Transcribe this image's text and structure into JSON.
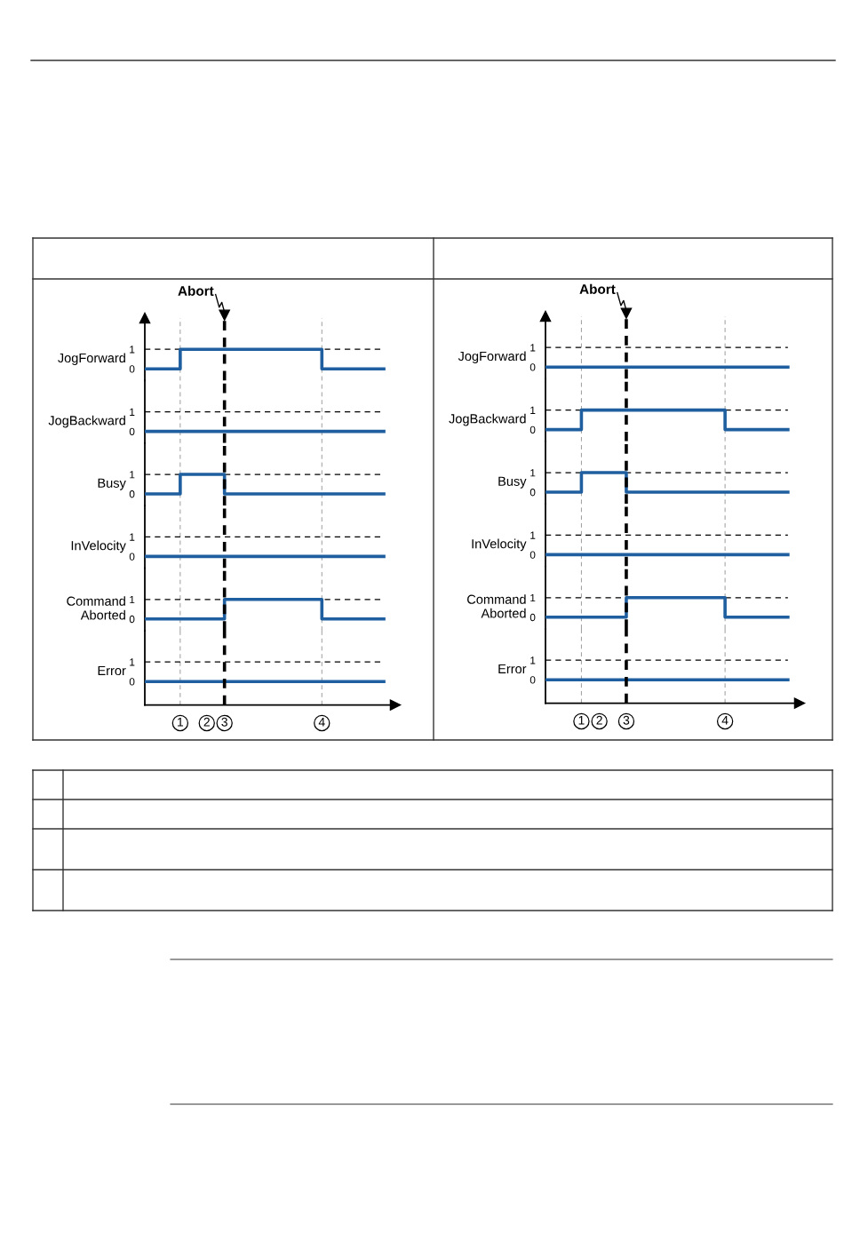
{
  "chart_data": [
    {
      "type": "step",
      "ylabel": "JogForward",
      "ylim": [
        -0.6,
        2.6
      ],
      "yticks": [
        0,
        1
      ],
      "tick_labels": "y",
      "categories": [
        null,
        null,
        null,
        null,
        "1",
        null,
        null,
        "2",
        null,
        "3",
        null,
        null,
        null,
        null,
        null,
        null,
        null,
        null,
        null,
        null,
        "4",
        null,
        null,
        null,
        null,
        null,
        null,
        null
      ],
      "series": [
        {
          "color": "#1f5f9f",
          "values": [
            0,
            0,
            0,
            0,
            1,
            1,
            1,
            1,
            1,
            1,
            1,
            1,
            1,
            1,
            1,
            1,
            1,
            1,
            1,
            1,
            0,
            0,
            0,
            0,
            0,
            0,
            0,
            0
          ]
        }
      ],
      "ref_lines": [
        {
          "axis": "y",
          "value": 1,
          "color": "#000000",
          "line_style": "dashed"
        },
        {
          "axis": "x",
          "value": "1",
          "color": "#999999",
          "line_style": "dashed"
        },
        {
          "axis": "x",
          "value": "4",
          "color": "#999999",
          "line_style": "dashed"
        },
        {
          "axis": "x",
          "value": "3",
          "color": "#000000",
          "line_style": "dashed",
          "label": "Abort"
        }
      ]
    },
    {
      "type": "step",
      "ylabel": "JogBackward",
      "ylim": [
        -0.6,
        2.6
      ],
      "yticks": [
        0,
        1
      ],
      "tick_labels": "y",
      "categories": [
        null,
        null,
        null,
        null,
        "1",
        null,
        null,
        "2",
        null,
        "3",
        null,
        null,
        null,
        null,
        null,
        null,
        null,
        null,
        null,
        null,
        "4",
        null,
        null,
        null,
        null,
        null,
        null,
        null
      ],
      "series": [
        {
          "color": "#1f5f9f",
          "values": [
            0,
            0,
            0,
            0,
            0,
            0,
            0,
            0,
            0,
            0,
            0,
            0,
            0,
            0,
            0,
            0,
            0,
            0,
            0,
            0,
            0,
            0,
            0,
            0,
            0,
            0,
            0,
            0
          ]
        }
      ],
      "ref_lines": [
        {
          "axis": "y",
          "value": 1,
          "color": "#000000",
          "line_style": "dashed"
        },
        {
          "axis": "x",
          "value": "1",
          "color": "#999999",
          "line_style": "dashed"
        },
        {
          "axis": "x",
          "value": "4",
          "color": "#999999",
          "line_style": "dashed"
        },
        {
          "axis": "x",
          "value": "3",
          "color": "#000000",
          "line_style": "dashed"
        }
      ]
    },
    {
      "type": "step",
      "ylabel": "Busy",
      "ylim": [
        -0.6,
        2.6
      ],
      "yticks": [
        0,
        1
      ],
      "tick_labels": "y",
      "categories": [
        null,
        null,
        null,
        null,
        "1",
        null,
        null,
        "2",
        null,
        "3",
        null,
        null,
        null,
        null,
        null,
        null,
        null,
        null,
        null,
        null,
        "4",
        null,
        null,
        null,
        null,
        null,
        null,
        null
      ],
      "series": [
        {
          "color": "#1f5f9f",
          "values": [
            0,
            0,
            0,
            0,
            1,
            1,
            1,
            1,
            1,
            0,
            0,
            0,
            0,
            0,
            0,
            0,
            0,
            0,
            0,
            0,
            0,
            0,
            0,
            0,
            0,
            0,
            0,
            0
          ]
        }
      ],
      "ref_lines": [
        {
          "axis": "y",
          "value": 1,
          "color": "#000000",
          "line_style": "dashed"
        },
        {
          "axis": "x",
          "value": "1",
          "color": "#999999",
          "line_style": "dashed"
        },
        {
          "axis": "x",
          "value": "4",
          "color": "#999999",
          "line_style": "dashed"
        },
        {
          "axis": "x",
          "value": "3",
          "color": "#000000",
          "line_style": "dashed"
        }
      ]
    },
    {
      "type": "step",
      "ylabel": "InVelocity",
      "ylim": [
        -0.6,
        2.6
      ],
      "yticks": [
        0,
        1
      ],
      "tick_labels": "y",
      "categories": [
        null,
        null,
        null,
        null,
        "1",
        null,
        null,
        "2",
        null,
        "3",
        null,
        null,
        null,
        null,
        null,
        null,
        null,
        null,
        null,
        null,
        "4",
        null,
        null,
        null,
        null,
        null,
        null,
        null
      ],
      "series": [
        {
          "color": "#1f5f9f",
          "values": [
            0,
            0,
            0,
            0,
            0,
            0,
            0,
            0,
            0,
            0,
            0,
            0,
            0,
            0,
            0,
            0,
            0,
            0,
            0,
            0,
            0,
            0,
            0,
            0,
            0,
            0,
            0,
            0
          ]
        }
      ],
      "ref_lines": [
        {
          "axis": "y",
          "value": 1,
          "color": "#000000",
          "line_style": "dashed"
        },
        {
          "axis": "x",
          "value": "1",
          "color": "#999999",
          "line_style": "dashed"
        },
        {
          "axis": "x",
          "value": "4",
          "color": "#999999",
          "line_style": "dashed"
        },
        {
          "axis": "x",
          "value": "3",
          "color": "#000000",
          "line_style": "dashed"
        }
      ]
    },
    {
      "type": "step",
      "ylabel": "Command\nAborted",
      "ylim": [
        -0.6,
        2.6
      ],
      "yticks": [
        0,
        1
      ],
      "tick_labels": "y",
      "categories": [
        null,
        null,
        null,
        null,
        "1",
        null,
        null,
        "2",
        null,
        "3",
        null,
        null,
        null,
        null,
        null,
        null,
        null,
        null,
        null,
        null,
        "4",
        null,
        null,
        null,
        null,
        null,
        null,
        null
      ],
      "series": [
        {
          "color": "#1f5f9f",
          "values": [
            0,
            0,
            0,
            0,
            0,
            0,
            0,
            0,
            0,
            1,
            1,
            1,
            1,
            1,
            1,
            1,
            1,
            1,
            1,
            1,
            0,
            0,
            0,
            0,
            0,
            0,
            0,
            0
          ]
        }
      ],
      "ref_lines": [
        {
          "axis": "y",
          "value": 1,
          "color": "#000000",
          "line_style": "dashed"
        },
        {
          "axis": "x",
          "value": "1",
          "color": "#999999",
          "line_style": "dashed"
        },
        {
          "axis": "x",
          "value": "4",
          "color": "#999999",
          "line_style": "dashed"
        },
        {
          "axis": "x",
          "value": "3",
          "color": "#000000",
          "line_style": "dashed"
        }
      ]
    },
    {
      "type": "step",
      "ylabel": "Error",
      "ylim": [
        -1.2,
        2.6
      ],
      "yticks": [
        0,
        1
      ],
      "categories": [
        null,
        null,
        null,
        null,
        "1",
        null,
        null,
        "2",
        null,
        "3",
        null,
        null,
        null,
        null,
        null,
        null,
        null,
        null,
        null,
        null,
        "4",
        null,
        null,
        null,
        null,
        null,
        null,
        null
      ],
      "series": [
        {
          "color": "#1f5f9f",
          "values": [
            0,
            0,
            0,
            0,
            0,
            0,
            0,
            0,
            0,
            0,
            0,
            0,
            0,
            0,
            0,
            0,
            0,
            0,
            0,
            0,
            0,
            0,
            0,
            0,
            0,
            0,
            0,
            0
          ]
        }
      ],
      "ref_lines": [
        {
          "axis": "y",
          "value": 1,
          "color": "#000000",
          "line_style": "dashed"
        },
        {
          "axis": "x",
          "value": "1",
          "color": "#999999",
          "line_style": "dashed"
        },
        {
          "axis": "x",
          "value": "4",
          "color": "#999999",
          "line_style": "dashed"
        },
        {
          "axis": "x",
          "value": "3",
          "color": "#000000",
          "line_style": "dashed"
        }
      ]
    },
    {
      "type": "step",
      "ylabel": "JogForward",
      "ylim": [
        -0.6,
        2.6
      ],
      "yticks": [
        0,
        1
      ],
      "tick_labels": "y",
      "categories": [
        null,
        null,
        null,
        null,
        "1",
        null,
        "2",
        null,
        null,
        "3",
        null,
        null,
        null,
        null,
        null,
        null,
        null,
        null,
        null,
        null,
        "4",
        null,
        null,
        null,
        null,
        null,
        null,
        null
      ],
      "series": [
        {
          "color": "#1f5f9f",
          "values": [
            0,
            0,
            0,
            0,
            0,
            0,
            0,
            0,
            0,
            0,
            0,
            0,
            0,
            0,
            0,
            0,
            0,
            0,
            0,
            0,
            0,
            0,
            0,
            0,
            0,
            0,
            0,
            0
          ]
        }
      ],
      "ref_lines": [
        {
          "axis": "y",
          "value": 1,
          "color": "#000000",
          "line_style": "dashed"
        },
        {
          "axis": "x",
          "value": "1",
          "color": "#999999",
          "line_style": "dashed"
        },
        {
          "axis": "x",
          "value": "4",
          "color": "#999999",
          "line_style": "dashed"
        },
        {
          "axis": "x",
          "value": "3",
          "color": "#000000",
          "line_style": "dashed",
          "label": "Abort"
        }
      ]
    },
    {
      "type": "step",
      "ylabel": "JogBackward",
      "ylim": [
        -0.6,
        2.6
      ],
      "yticks": [
        0,
        1
      ],
      "tick_labels": "y",
      "categories": [
        null,
        null,
        null,
        null,
        "1",
        null,
        "2",
        null,
        null,
        "3",
        null,
        null,
        null,
        null,
        null,
        null,
        null,
        null,
        null,
        null,
        "4",
        null,
        null,
        null,
        null,
        null,
        null,
        null
      ],
      "series": [
        {
          "color": "#1f5f9f",
          "values": [
            0,
            0,
            0,
            0,
            1,
            1,
            1,
            1,
            1,
            1,
            1,
            1,
            1,
            1,
            1,
            1,
            1,
            1,
            1,
            1,
            0,
            0,
            0,
            0,
            0,
            0,
            0,
            0
          ]
        }
      ],
      "ref_lines": [
        {
          "axis": "y",
          "value": 1,
          "color": "#000000",
          "line_style": "dashed"
        },
        {
          "axis": "x",
          "value": "1",
          "color": "#999999",
          "line_style": "dashed"
        },
        {
          "axis": "x",
          "value": "4",
          "color": "#999999",
          "line_style": "dashed"
        },
        {
          "axis": "x",
          "value": "3",
          "color": "#000000",
          "line_style": "dashed"
        }
      ]
    },
    {
      "type": "step",
      "ylabel": "Busy",
      "ylim": [
        -0.6,
        2.6
      ],
      "yticks": [
        0,
        1
      ],
      "tick_labels": "y",
      "categories": [
        null,
        null,
        null,
        null,
        "1",
        null,
        "2",
        null,
        null,
        "3",
        null,
        null,
        null,
        null,
        null,
        null,
        null,
        null,
        null,
        null,
        "4",
        null,
        null,
        null,
        null,
        null,
        null,
        null
      ],
      "series": [
        {
          "color": "#1f5f9f",
          "values": [
            0,
            0,
            0,
            0,
            1,
            1,
            1,
            1,
            1,
            0,
            0,
            0,
            0,
            0,
            0,
            0,
            0,
            0,
            0,
            0,
            0,
            0,
            0,
            0,
            0,
            0,
            0,
            0
          ]
        }
      ],
      "ref_lines": [
        {
          "axis": "y",
          "value": 1,
          "color": "#000000",
          "line_style": "dashed"
        },
        {
          "axis": "x",
          "value": "1",
          "color": "#999999",
          "line_style": "dashed"
        },
        {
          "axis": "x",
          "value": "4",
          "color": "#999999",
          "line_style": "dashed"
        },
        {
          "axis": "x",
          "value": "3",
          "color": "#000000",
          "line_style": "dashed"
        }
      ]
    },
    {
      "type": "step",
      "ylabel": "InVelocity",
      "ylim": [
        -0.6,
        2.6
      ],
      "yticks": [
        0,
        1
      ],
      "tick_labels": "y",
      "categories": [
        null,
        null,
        null,
        null,
        "1",
        null,
        "2",
        null,
        null,
        "3",
        null,
        null,
        null,
        null,
        null,
        null,
        null,
        null,
        null,
        null,
        "4",
        null,
        null,
        null,
        null,
        null,
        null,
        null
      ],
      "series": [
        {
          "color": "#1f5f9f",
          "values": [
            0,
            0,
            0,
            0,
            0,
            0,
            0,
            0,
            0,
            0,
            0,
            0,
            0,
            0,
            0,
            0,
            0,
            0,
            0,
            0,
            0,
            0,
            0,
            0,
            0,
            0,
            0,
            0
          ]
        }
      ],
      "ref_lines": [
        {
          "axis": "y",
          "value": 1,
          "color": "#000000",
          "line_style": "dashed"
        },
        {
          "axis": "x",
          "value": "1",
          "color": "#999999",
          "line_style": "dashed"
        },
        {
          "axis": "x",
          "value": "4",
          "color": "#999999",
          "line_style": "dashed"
        },
        {
          "axis": "x",
          "value": "3",
          "color": "#000000",
          "line_style": "dashed"
        }
      ]
    },
    {
      "type": "step",
      "ylabel": "Command\nAborted",
      "ylim": [
        -0.6,
        2.6
      ],
      "yticks": [
        0,
        1
      ],
      "tick_labels": "y",
      "categories": [
        null,
        null,
        null,
        null,
        "1",
        null,
        "2",
        null,
        null,
        "3",
        null,
        null,
        null,
        null,
        null,
        null,
        null,
        null,
        null,
        null,
        "4",
        null,
        null,
        null,
        null,
        null,
        null,
        null
      ],
      "series": [
        {
          "color": "#1f5f9f",
          "values": [
            0,
            0,
            0,
            0,
            0,
            0,
            0,
            0,
            0,
            1,
            1,
            1,
            1,
            1,
            1,
            1,
            1,
            1,
            1,
            1,
            0,
            0,
            0,
            0,
            0,
            0,
            0,
            0
          ]
        }
      ],
      "ref_lines": [
        {
          "axis": "y",
          "value": 1,
          "color": "#000000",
          "line_style": "dashed"
        },
        {
          "axis": "x",
          "value": "1",
          "color": "#999999",
          "line_style": "dashed"
        },
        {
          "axis": "x",
          "value": "4",
          "color": "#999999",
          "line_style": "dashed"
        },
        {
          "axis": "x",
          "value": "3",
          "color": "#000000",
          "line_style": "dashed"
        }
      ]
    },
    {
      "type": "step",
      "ylabel": "Error",
      "ylim": [
        -1.2,
        2.6
      ],
      "yticks": [
        0,
        1
      ],
      "categories": [
        null,
        null,
        null,
        null,
        "1",
        null,
        "2",
        null,
        null,
        "3",
        null,
        null,
        null,
        null,
        null,
        null,
        null,
        null,
        null,
        null,
        "4",
        null,
        null,
        null,
        null,
        null,
        null,
        null
      ],
      "series": [
        {
          "color": "#1f5f9f",
          "values": [
            0,
            0,
            0,
            0,
            0,
            0,
            0,
            0,
            0,
            0,
            0,
            0,
            0,
            0,
            0,
            0,
            0,
            0,
            0,
            0,
            0,
            0,
            0,
            0,
            0,
            0,
            0,
            0
          ]
        }
      ],
      "ref_lines": [
        {
          "axis": "y",
          "value": 1,
          "color": "#000000",
          "line_style": "dashed"
        },
        {
          "axis": "x",
          "value": "1",
          "color": "#999999",
          "line_style": "dashed"
        },
        {
          "axis": "x",
          "value": "4",
          "color": "#999999",
          "line_style": "dashed"
        },
        {
          "axis": "x",
          "value": "3",
          "color": "#000000",
          "line_style": "dashed"
        }
      ]
    }
  ]
}
